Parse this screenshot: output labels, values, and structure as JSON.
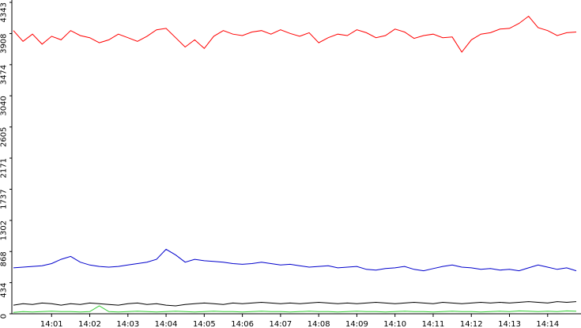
{
  "chart_data": {
    "type": "line",
    "categories": [
      null,
      null,
      null,
      null,
      "14:01",
      null,
      null,
      null,
      "14:02",
      null,
      null,
      null,
      "14:03",
      null,
      null,
      null,
      "14:04",
      null,
      null,
      null,
      "14:05",
      null,
      null,
      null,
      "14:06",
      null,
      null,
      null,
      "14:07",
      null,
      null,
      null,
      "14:08",
      null,
      null,
      null,
      "14:09",
      null,
      null,
      null,
      "14:10",
      null,
      null,
      null,
      "14:11",
      null,
      null,
      null,
      "14:12",
      null,
      null,
      null,
      "14:13",
      null,
      null,
      null,
      "14:14",
      null,
      null,
      null
    ],
    "series": [
      {
        "color": "#ff0000",
        "values": [
          3950,
          3800,
          3900,
          3760,
          3870,
          3820,
          3950,
          3880,
          3850,
          3780,
          3820,
          3900,
          3850,
          3800,
          3870,
          3960,
          3980,
          3850,
          3720,
          3820,
          3700,
          3870,
          3950,
          3900,
          3880,
          3930,
          3950,
          3900,
          3960,
          3910,
          3870,
          3920,
          3780,
          3850,
          3900,
          3880,
          3960,
          3920,
          3850,
          3880,
          3970,
          3930,
          3840,
          3880,
          3900,
          3850,
          3860,
          3650,
          3820,
          3900,
          3920,
          3970,
          3980,
          4050,
          4150,
          3990,
          3950,
          3880,
          3920,
          3930
        ]
      },
      {
        "color": "#0000cc",
        "values": [
          640,
          650,
          660,
          670,
          700,
          760,
          800,
          720,
          680,
          660,
          650,
          660,
          680,
          700,
          720,
          760,
          900,
          820,
          720,
          760,
          740,
          730,
          720,
          700,
          690,
          700,
          720,
          700,
          680,
          690,
          670,
          650,
          660,
          670,
          640,
          650,
          660,
          620,
          610,
          630,
          640,
          660,
          620,
          600,
          630,
          660,
          680,
          650,
          640,
          620,
          630,
          610,
          620,
          600,
          640,
          680,
          650,
          620,
          640,
          600
        ]
      },
      {
        "color": "#000000",
        "values": [
          120,
          140,
          130,
          150,
          140,
          120,
          140,
          130,
          150,
          140,
          130,
          120,
          140,
          150,
          130,
          140,
          120,
          110,
          130,
          140,
          150,
          140,
          130,
          150,
          140,
          150,
          160,
          150,
          140,
          150,
          140,
          150,
          160,
          150,
          140,
          150,
          140,
          150,
          160,
          150,
          140,
          150,
          160,
          150,
          140,
          160,
          150,
          140,
          150,
          160,
          150,
          160,
          150,
          160,
          170,
          160,
          150,
          170,
          160,
          170
        ]
      },
      {
        "color": "#33cc33",
        "values": [
          20,
          30,
          25,
          30,
          35,
          30,
          30,
          25,
          30,
          110,
          30,
          25,
          30,
          35,
          30,
          25,
          30,
          35,
          30,
          25,
          30,
          35,
          30,
          30,
          25,
          30,
          35,
          30,
          30,
          25,
          30,
          35,
          30,
          30,
          25,
          30,
          35,
          30,
          30,
          25,
          30,
          35,
          30,
          30,
          25,
          30,
          35,
          30,
          30,
          25,
          30,
          35,
          30,
          40,
          35,
          30,
          35,
          30,
          40,
          35
        ]
      }
    ],
    "ylim": [
      0,
      4343
    ],
    "yticks": [
      0,
      434,
      868,
      1302,
      1737,
      2171,
      2605,
      3040,
      3474,
      3908,
      4343
    ]
  }
}
